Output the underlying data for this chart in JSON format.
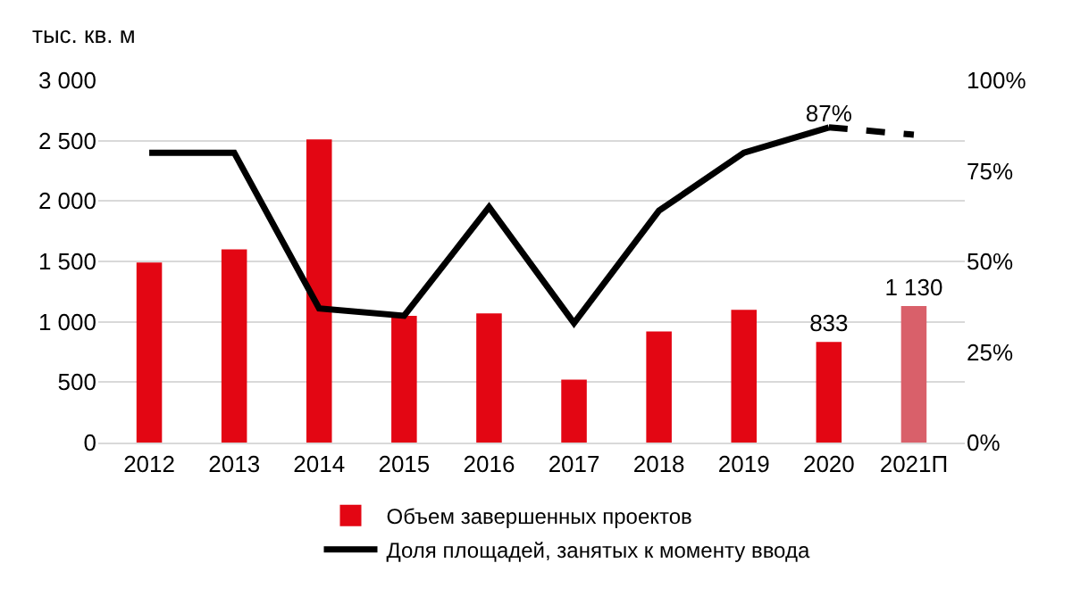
{
  "chart_data": {
    "type": "bar",
    "ylabel": "тыс. кв. м",
    "categories": [
      "2012",
      "2013",
      "2014",
      "2015",
      "2016",
      "2017",
      "2018",
      "2019",
      "2020",
      "2021П"
    ],
    "series": [
      {
        "name": "Объем завершенных проектов",
        "colors": [
          "#e30613",
          "#e30613",
          "#e30613",
          "#e30613",
          "#e30613",
          "#e30613",
          "#e30613",
          "#e30613",
          "#e30613",
          "#d9606a"
        ],
        "values": [
          1490,
          1600,
          2510,
          1050,
          1070,
          520,
          920,
          1100,
          833,
          1130
        ],
        "value_labels": [
          null,
          null,
          null,
          null,
          null,
          null,
          null,
          null,
          "833",
          "1 130"
        ]
      },
      {
        "name": "Доля площадей, занятых к моменту ввода",
        "type": "line",
        "axis": "y2",
        "color": "#000000",
        "line_style": "solid",
        "values": [
          80,
          80,
          37,
          35,
          65,
          33,
          64,
          80,
          87,
          null
        ],
        "value_labels": [
          null,
          null,
          null,
          null,
          null,
          null,
          null,
          null,
          "87%",
          null
        ]
      },
      {
        "type": "line",
        "axis": "y2",
        "color": "#000000",
        "line_style": "dashed",
        "values": [
          null,
          null,
          null,
          null,
          null,
          null,
          null,
          null,
          87,
          85
        ]
      }
    ],
    "ylim": [
      0,
      3000
    ],
    "yticks": [
      {
        "value": 0,
        "label": "0"
      },
      {
        "value": 500,
        "label": "500"
      },
      {
        "value": 1000,
        "label": "1 000"
      },
      {
        "value": 1500,
        "label": "1 500"
      },
      {
        "value": 2000,
        "label": "2 000"
      },
      {
        "value": 2500,
        "label": "2 500"
      },
      {
        "value": 3000,
        "label": "3 000"
      }
    ],
    "y2lim": [
      0,
      100
    ],
    "y2ticks": [
      {
        "value": 0,
        "label": "0%"
      },
      {
        "value": 25,
        "label": "25%"
      },
      {
        "value": 50,
        "label": "50%"
      },
      {
        "value": 75,
        "label": "75%"
      },
      {
        "value": 100,
        "label": "100%"
      }
    ],
    "grid": "y",
    "legend": "bottom",
    "marker": "none"
  }
}
